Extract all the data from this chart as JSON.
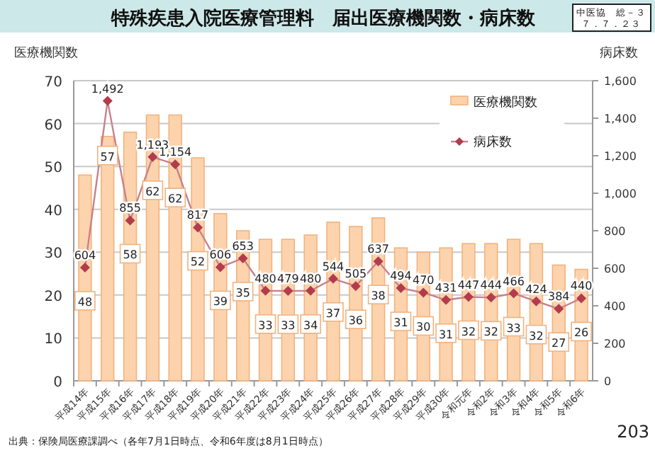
{
  "chart_data": {
    "type": "bar",
    "title": "特殊疾患入院医療管理料　届出医療機関数・病床数",
    "ylabel": "医療機関数",
    "y2label": "病床数",
    "annotations": [
      "中医協　総－３",
      "７．７．２３",
      "出典：保険局医療課調べ（各年7月1日時点、令和6年度は8月1日時点）",
      "203"
    ],
    "categories": [
      "平成14年",
      "平成15年",
      "平成16年",
      "平成17年",
      "平成18年",
      "平成19年",
      "平成20年",
      "平成21年",
      "平成22年",
      "平成23年",
      "平成24年",
      "平成25年",
      "平成26年",
      "平成27年",
      "平成28年",
      "平成29年",
      "平成30年",
      "令和元年",
      "令和2年",
      "令和3年",
      "令和4年",
      "令和5年",
      "令和6年"
    ],
    "series": [
      {
        "name": "医療機関数",
        "color": "#fcd3ad",
        "values": [
          48,
          57,
          58,
          62,
          62,
          52,
          39,
          35,
          33,
          33,
          34,
          37,
          36,
          38,
          31,
          30,
          31,
          32,
          32,
          33,
          32,
          27,
          26
        ],
        "value_labels": [
          "48",
          "57",
          "58",
          "62",
          "62",
          "52",
          "39",
          "35",
          "33",
          "33",
          "34",
          "37",
          "36",
          "38",
          "31",
          "30",
          "31",
          "32",
          "32",
          "33",
          "32",
          "27",
          "26"
        ]
      },
      {
        "name": "病床数",
        "type": "line",
        "axis": "y2",
        "color": "#c9808c",
        "marker": "diamond",
        "values": [
          604,
          1492,
          855,
          1193,
          1154,
          817,
          606,
          653,
          480,
          479,
          480,
          544,
          505,
          637,
          494,
          470,
          431,
          447,
          444,
          466,
          424,
          384,
          440
        ],
        "value_labels": [
          "604",
          "1,492",
          "855",
          "1,193",
          "1,154",
          "817",
          "606",
          "653",
          "480",
          "479",
          "480",
          "544",
          "505",
          "637",
          "494",
          "470",
          "431",
          "447",
          "444",
          "466",
          "424",
          "384",
          "440"
        ]
      }
    ],
    "ylim": [
      0,
      70
    ],
    "yticks": [
      0,
      10,
      20,
      30,
      40,
      50,
      60,
      70
    ],
    "y2lim": [
      0,
      1600
    ],
    "y2ticks": [
      0,
      {
        "value": 200,
        "label": "200"
      },
      {
        "value": 400,
        "label": "400"
      },
      {
        "value": 600,
        "label": "600"
      },
      {
        "value": 800,
        "label": "800"
      },
      {
        "value": 1000,
        "label": "1,000"
      },
      {
        "value": 1200,
        "label": "1,200"
      },
      {
        "value": 1400,
        "label": "1,400"
      },
      {
        "value": 1600,
        "label": "1,600"
      }
    ],
    "grid": "y",
    "legend": "top right"
  }
}
